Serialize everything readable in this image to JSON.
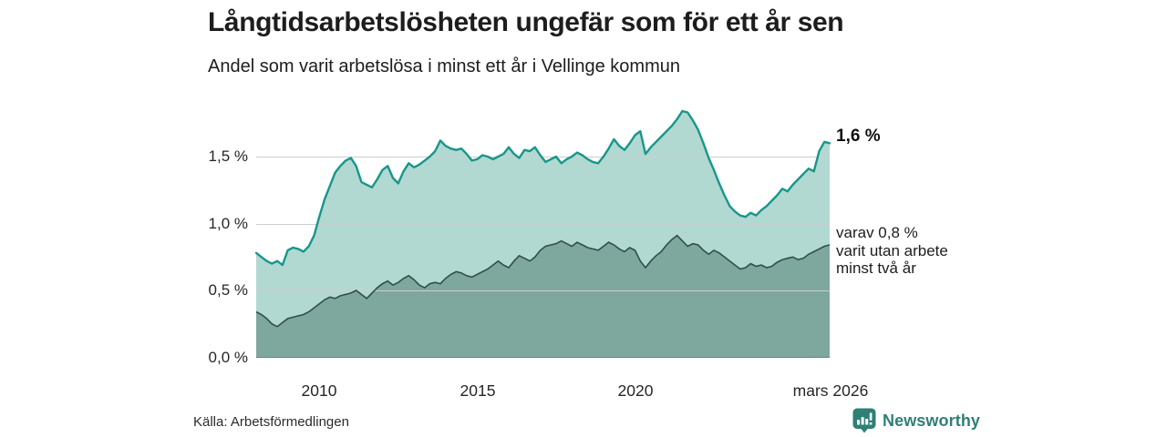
{
  "header": {
    "title": "Långtidsarbetslösheten ungefär som för ett år sen",
    "subtitle": "Andel som varit arbetslösa i minst ett år i Vellinge kommun"
  },
  "chart_data": {
    "type": "area",
    "title": "Långtidsarbetslösheten ungefär som för ett år sen",
    "subtitle": "Andel som varit arbetslösa i minst ett år i Vellinge kommun",
    "unit": "%",
    "ylim": [
      0,
      2.0
    ],
    "grid": "horizontal",
    "y_ticks": [
      {
        "label": "0,0 %",
        "value": 0
      },
      {
        "label": "0,5 %",
        "value": 0.5
      },
      {
        "label": "1,0 %",
        "value": 1.0
      },
      {
        "label": "1,5 %",
        "value": 1.5
      }
    ],
    "x_tick_labels": [
      "2010",
      "2015",
      "2020",
      "mars 2026"
    ],
    "series": [
      {
        "name": "Andel arbetslösa minst ett år",
        "line_color": "#17978a",
        "fill_color": "#b2d8d2",
        "latest_label": "1,6 %",
        "latest_value": 1.6,
        "values": [
          0.78,
          0.75,
          0.72,
          0.7,
          0.72,
          0.69,
          0.8,
          0.82,
          0.81,
          0.79,
          0.83,
          0.91,
          1.05,
          1.18,
          1.28,
          1.38,
          1.43,
          1.47,
          1.49,
          1.43,
          1.31,
          1.29,
          1.27,
          1.33,
          1.4,
          1.43,
          1.34,
          1.3,
          1.39,
          1.45,
          1.42,
          1.44,
          1.47,
          1.5,
          1.54,
          1.62,
          1.58,
          1.56,
          1.55,
          1.56,
          1.52,
          1.47,
          1.48,
          1.51,
          1.5,
          1.48,
          1.5,
          1.52,
          1.57,
          1.52,
          1.49,
          1.55,
          1.54,
          1.57,
          1.51,
          1.46,
          1.48,
          1.5,
          1.45,
          1.48,
          1.5,
          1.53,
          1.51,
          1.48,
          1.46,
          1.45,
          1.5,
          1.56,
          1.63,
          1.58,
          1.55,
          1.6,
          1.66,
          1.69,
          1.52,
          1.57,
          1.61,
          1.65,
          1.69,
          1.73,
          1.78,
          1.84,
          1.83,
          1.77,
          1.7,
          1.6,
          1.49,
          1.4,
          1.3,
          1.21,
          1.13,
          1.09,
          1.06,
          1.05,
          1.08,
          1.06,
          1.1,
          1.13,
          1.17,
          1.21,
          1.26,
          1.24,
          1.29,
          1.33,
          1.37,
          1.41,
          1.39,
          1.54,
          1.61,
          1.6
        ]
      },
      {
        "name": "varav varit utan arbete minst två år",
        "line_color": "#2e4f49",
        "fill_color": "#7ea79e",
        "latest_label": "varav 0,8 % varit utan arbete minst två år",
        "latest_value": 0.8,
        "values": [
          0.34,
          0.32,
          0.29,
          0.25,
          0.23,
          0.26,
          0.29,
          0.3,
          0.31,
          0.32,
          0.34,
          0.37,
          0.4,
          0.43,
          0.45,
          0.44,
          0.46,
          0.47,
          0.48,
          0.5,
          0.47,
          0.44,
          0.48,
          0.52,
          0.55,
          0.57,
          0.54,
          0.56,
          0.59,
          0.61,
          0.58,
          0.54,
          0.52,
          0.55,
          0.56,
          0.55,
          0.59,
          0.62,
          0.64,
          0.63,
          0.61,
          0.6,
          0.62,
          0.64,
          0.66,
          0.69,
          0.72,
          0.69,
          0.67,
          0.72,
          0.76,
          0.74,
          0.72,
          0.75,
          0.8,
          0.83,
          0.84,
          0.85,
          0.87,
          0.85,
          0.83,
          0.86,
          0.84,
          0.82,
          0.81,
          0.8,
          0.83,
          0.86,
          0.84,
          0.81,
          0.79,
          0.82,
          0.8,
          0.72,
          0.67,
          0.72,
          0.76,
          0.79,
          0.84,
          0.88,
          0.91,
          0.87,
          0.83,
          0.85,
          0.84,
          0.8,
          0.77,
          0.8,
          0.78,
          0.75,
          0.72,
          0.69,
          0.66,
          0.67,
          0.7,
          0.68,
          0.69,
          0.67,
          0.68,
          0.71,
          0.73,
          0.74,
          0.75,
          0.73,
          0.74,
          0.77,
          0.79,
          0.81,
          0.83,
          0.84
        ]
      }
    ],
    "legend_position": "right-annotations"
  },
  "annotations": {
    "latest_top": "1,6 %",
    "varav_lines": [
      "varav 0,8 %",
      "varit utan arbete",
      "minst två år"
    ]
  },
  "colors": {
    "accent_line": "#17978a",
    "light_fill": "#b2d8d2",
    "dark_fill": "#7ea79e",
    "dark_line": "#2e4f49",
    "gridline": "#cbcfce",
    "brand_teal": "#2f7f76"
  },
  "footer": {
    "source": "Källa: Arbetsförmedlingen",
    "brand": "Newsworthy"
  }
}
